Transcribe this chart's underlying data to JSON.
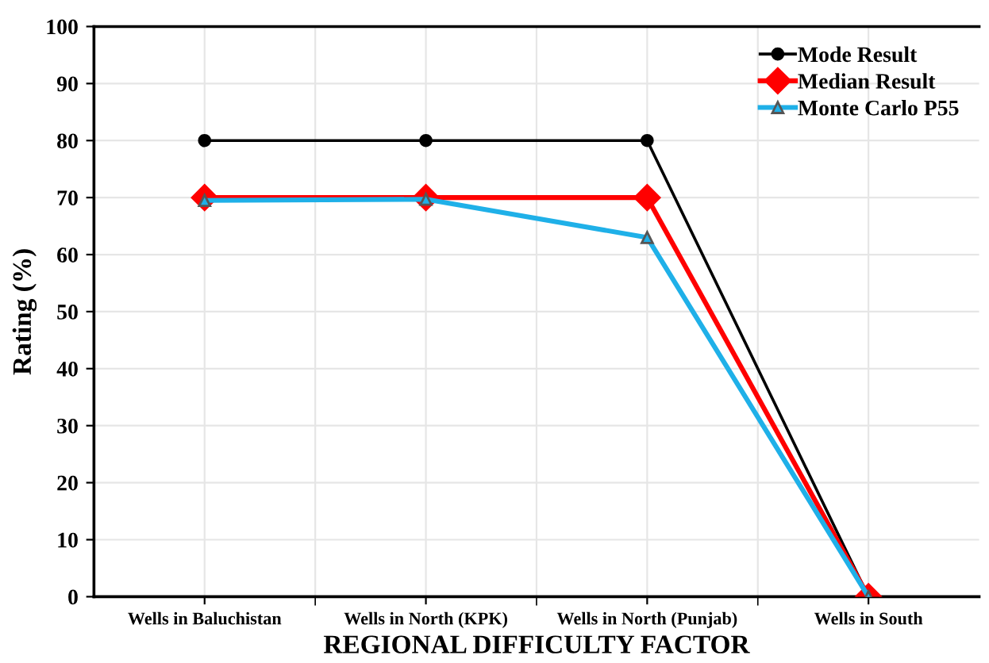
{
  "chart_data": {
    "type": "line",
    "xlabel": "REGIONAL DIFFICULTY FACTOR",
    "ylabel": "Rating (%)",
    "categories": [
      "Wells in Baluchistan",
      "Wells in North (KPK)",
      "Wells in North (Punjab)",
      "Wells in South"
    ],
    "series": [
      {
        "name": "Mode Result",
        "color": "#000000",
        "marker": "circle",
        "values": [
          80,
          80,
          80,
          0
        ]
      },
      {
        "name": "Median Result",
        "color": "#ff0000",
        "marker": "diamond",
        "values": [
          70,
          70,
          70,
          0
        ]
      },
      {
        "name": "Monte Carlo P55",
        "color": "#1fb0e8",
        "marker": "triangle",
        "values": [
          69.5,
          69.7,
          63,
          0
        ]
      }
    ],
    "ylim": [
      0,
      100
    ],
    "yticks": [
      0,
      10,
      20,
      30,
      40,
      50,
      60,
      70,
      80,
      90,
      100
    ],
    "grid": true,
    "legend": "top right",
    "line_style": "solid"
  }
}
